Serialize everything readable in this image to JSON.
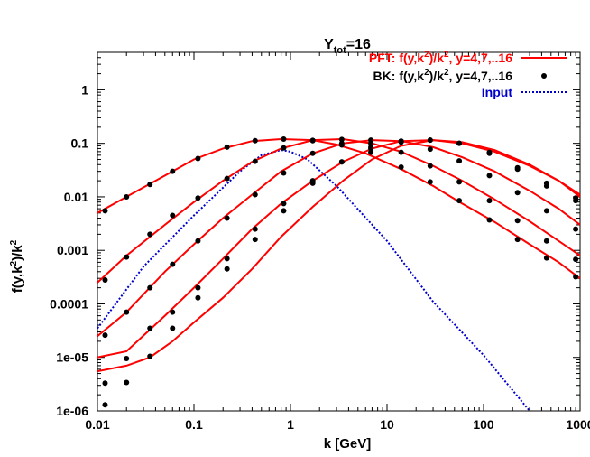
{
  "chart_data": {
    "type": "line",
    "title_main": "Y",
    "title_sub": "tot",
    "title_rest": "=16",
    "xlabel": "k [GeV]",
    "ylabel_html": [
      "f(y,k",
      "2",
      ")/k",
      "2"
    ],
    "x_scale": "log",
    "y_scale": "log",
    "xlim": [
      0.01,
      1000
    ],
    "ylim": [
      1e-06,
      5
    ],
    "x_ticks": [
      {
        "v": 0.01,
        "label": "0.01"
      },
      {
        "v": 0.1,
        "label": "0.1"
      },
      {
        "v": 1,
        "label": "1"
      },
      {
        "v": 10,
        "label": "10"
      },
      {
        "v": 100,
        "label": "100"
      },
      {
        "v": 1000,
        "label": "1000"
      }
    ],
    "y_ticks": [
      {
        "v": 1e-06,
        "label": "1e-06"
      },
      {
        "v": 1e-05,
        "label": "1e-05"
      },
      {
        "v": 0.0001,
        "label": "0.0001"
      },
      {
        "v": 0.001,
        "label": "0.001"
      },
      {
        "v": 0.01,
        "label": "0.01"
      },
      {
        "v": 0.1,
        "label": "0.1"
      },
      {
        "v": 1,
        "label": "1"
      }
    ],
    "legend_position": "top-right",
    "legend": [
      {
        "parts": [
          "PFT: f(y,k",
          "2",
          ")/k",
          "2",
          ", y=4,7,..16"
        ],
        "color": "#ff0000",
        "style": "line"
      },
      {
        "parts": [
          "BK: f(y,k",
          "2",
          ")/k",
          "2",
          ", y=4,7,..16"
        ],
        "color": "#000000",
        "style": "point"
      },
      {
        "parts": [
          "Input"
        ],
        "color": "#0000cc",
        "style": "dotted"
      }
    ],
    "colors": {
      "pft": "#ff0000",
      "bk": "#000000",
      "input": "#0000cc"
    },
    "series": [
      {
        "name": "Input",
        "kind": "dotted",
        "color": "#0000cc",
        "x": [
          0.01,
          0.03,
          0.1,
          0.3,
          0.5,
          0.8,
          1.0,
          1.5,
          3,
          10,
          30,
          100,
          300
        ],
        "y": [
          3.5e-05,
          0.0005,
          0.0045,
          0.03,
          0.06,
          0.075,
          0.07,
          0.05,
          0.016,
          0.0015,
          0.00011,
          1.1e-05,
          1e-06
        ]
      },
      {
        "name": "y=4",
        "kind": "pft",
        "color": "#ff0000",
        "x": [
          0.01,
          0.02,
          0.05,
          0.1,
          0.2,
          0.4,
          0.8,
          1.7,
          3,
          6,
          14,
          30,
          60,
          130,
          300,
          600,
          1000
        ],
        "y": [
          0.005,
          0.01,
          0.025,
          0.05,
          0.08,
          0.11,
          0.12,
          0.115,
          0.095,
          0.065,
          0.033,
          0.016,
          0.0075,
          0.0034,
          0.0013,
          0.0006,
          0.0003
        ]
      },
      {
        "name": "y=7",
        "kind": "pft",
        "color": "#ff0000",
        "x": [
          0.01,
          0.02,
          0.05,
          0.1,
          0.2,
          0.4,
          0.8,
          1.7,
          3.5,
          7,
          14,
          30,
          60,
          130,
          300,
          600,
          1000
        ],
        "y": [
          0.00025,
          0.0008,
          0.003,
          0.008,
          0.02,
          0.045,
          0.08,
          0.115,
          0.12,
          0.1,
          0.07,
          0.038,
          0.02,
          0.009,
          0.0035,
          0.0015,
          0.0008
        ]
      },
      {
        "name": "y=10",
        "kind": "pft",
        "color": "#ff0000",
        "x": [
          0.01,
          0.02,
          0.05,
          0.1,
          0.2,
          0.4,
          0.8,
          1.7,
          3.5,
          7,
          14,
          30,
          60,
          130,
          300,
          600,
          1000
        ],
        "y": [
          2.5e-05,
          7e-05,
          0.0004,
          0.0013,
          0.004,
          0.011,
          0.03,
          0.065,
          0.1,
          0.115,
          0.11,
          0.085,
          0.055,
          0.03,
          0.013,
          0.006,
          0.003
        ]
      },
      {
        "name": "y=13",
        "kind": "pft",
        "color": "#ff0000",
        "x": [
          0.01,
          0.02,
          0.05,
          0.1,
          0.2,
          0.4,
          0.8,
          1.7,
          3.5,
          7,
          14,
          30,
          60,
          130,
          300,
          600,
          1000
        ],
        "y": [
          1e-05,
          1.3e-05,
          6e-05,
          0.0002,
          0.0007,
          0.0025,
          0.0075,
          0.02,
          0.045,
          0.08,
          0.11,
          0.115,
          0.1,
          0.07,
          0.038,
          0.02,
          0.011
        ]
      },
      {
        "name": "y=16",
        "kind": "pft",
        "color": "#ff0000",
        "x": [
          0.01,
          0.02,
          0.035,
          0.06,
          0.1,
          0.2,
          0.4,
          0.8,
          1.7,
          3.5,
          7,
          14,
          30,
          60,
          130,
          300,
          600,
          1000
        ],
        "y": [
          5.5e-06,
          7e-06,
          1e-05,
          2e-05,
          4.5e-05,
          0.00013,
          0.00045,
          0.0018,
          0.0065,
          0.02,
          0.05,
          0.09,
          0.115,
          0.105,
          0.075,
          0.04,
          0.02,
          0.01
        ]
      },
      {
        "name": "BK",
        "kind": "bk",
        "color": "#000000",
        "x": [
          0.012,
          0.02,
          0.035,
          0.06,
          0.11,
          0.22,
          0.43,
          0.85,
          1.7,
          3.4,
          6.8,
          14,
          28,
          56,
          115,
          225,
          450,
          900,
          0.012,
          0.02,
          0.035,
          0.06,
          0.11,
          0.22,
          0.43,
          0.85,
          1.7,
          3.4,
          6.8,
          14,
          28,
          56,
          115,
          225,
          450,
          900,
          0.012,
          0.02,
          0.035,
          0.06,
          0.11,
          0.22,
          0.43,
          0.85,
          1.7,
          3.4,
          6.8,
          14,
          28,
          56,
          115,
          225,
          450,
          900,
          0.012,
          0.02,
          0.035,
          0.06,
          0.11,
          0.22,
          0.43,
          0.85,
          1.7,
          3.4,
          6.8,
          14,
          28,
          56,
          115,
          225,
          450,
          900,
          0.012,
          0.02,
          0.035,
          0.06,
          0.11,
          0.22,
          0.43,
          0.85,
          1.7,
          3.4,
          6.8,
          14,
          28,
          56,
          115,
          225,
          450,
          900
        ],
        "y": [
          0.0055,
          0.01,
          0.017,
          0.03,
          0.052,
          0.085,
          0.112,
          0.12,
          0.112,
          0.093,
          0.068,
          0.036,
          0.019,
          0.0085,
          0.0037,
          0.0016,
          0.00072,
          0.00032,
          0.00028,
          0.00075,
          0.002,
          0.0045,
          0.0095,
          0.022,
          0.046,
          0.082,
          0.114,
          0.118,
          0.1,
          0.068,
          0.038,
          0.019,
          0.0085,
          0.0036,
          0.0015,
          0.00068,
          2.6e-05,
          7e-05,
          0.0002,
          0.00055,
          0.0015,
          0.004,
          0.011,
          0.028,
          0.065,
          0.1,
          0.115,
          0.105,
          0.078,
          0.047,
          0.025,
          0.012,
          0.0055,
          0.0025,
          3.3e-06,
          9.5e-06,
          3.5e-05,
          7e-05,
          0.0002,
          0.0007,
          0.0025,
          0.0075,
          0.02,
          0.045,
          0.08,
          0.11,
          0.115,
          0.1,
          0.068,
          0.035,
          0.018,
          0.0085,
          1.3e-06,
          3.4e-06,
          1.05e-05,
          3.5e-05,
          0.00013,
          0.00045,
          0.0016,
          0.0055,
          0.018,
          0.045,
          0.085,
          0.11,
          0.115,
          0.1,
          0.065,
          0.033,
          0.016,
          0.0095
        ]
      }
    ]
  }
}
